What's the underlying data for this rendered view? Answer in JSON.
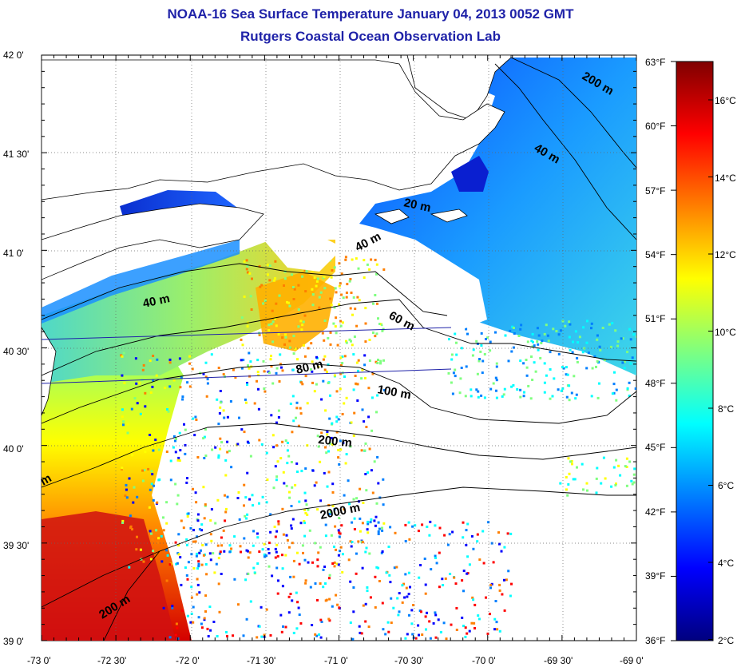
{
  "title": "NOAA-16 Sea Surface Temperature January 04, 2013 0052 GMT",
  "subtitle": "Rutgers Coastal Ocean Observation Lab",
  "axes": {
    "lat_ticks": [
      "42 0'",
      "41 30'",
      "41 0'",
      "40 30'",
      "40 0'",
      "39 30'",
      "39 0'"
    ],
    "lon_ticks": [
      "-73 0'",
      "-72 30'",
      "-72 0'",
      "-71 30'",
      "-71 0'",
      "-70 30'",
      "-70 0'",
      "-69 30'",
      "-69 0'"
    ],
    "fahrenheit_ticks": [
      "63°F",
      "60°F",
      "57°F",
      "54°F",
      "51°F",
      "48°F",
      "45°F",
      "42°F",
      "39°F",
      "36°F"
    ]
  },
  "colorbar": {
    "celsius_ticks": [
      "16°C",
      "14°C",
      "12°C",
      "10°C",
      "8°C",
      "6°C",
      "4°C",
      "2°C"
    ],
    "colors": [
      "#7f0000",
      "#ff0000",
      "#ff7f00",
      "#ffff00",
      "#7fff7f",
      "#00ffff",
      "#007fff",
      "#0000ff",
      "#00007f"
    ]
  },
  "contour_labels": [
    "200 m",
    "40 m",
    "20 m",
    "40 m",
    "40 m",
    "60 m",
    "80 m",
    "100 m",
    "200 m",
    "2000 m",
    "200 m",
    "m"
  ]
}
